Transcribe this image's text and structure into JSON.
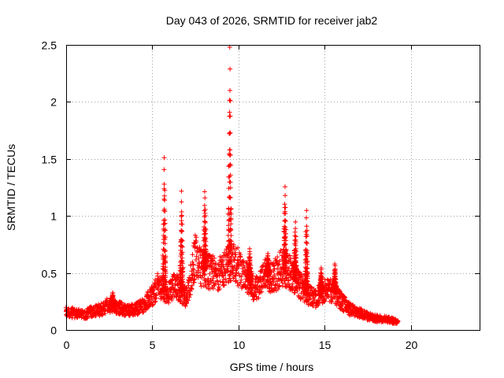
{
  "chart_data": {
    "type": "scatter",
    "title": "Day 043 of 2026, SRMTID for receiver jab2",
    "xlabel": "GPS time / hours",
    "ylabel": "SRMTID / TECUs",
    "xlim": [
      0,
      24
    ],
    "ylim": [
      0,
      2.5
    ],
    "grid": true,
    "marker": "+",
    "color": "#ff0000",
    "xticks": [
      0,
      5,
      10,
      15,
      20
    ],
    "xtick_labels": [
      "0",
      "5",
      "10",
      "15",
      "20"
    ],
    "yticks": [
      0,
      0.5,
      1,
      1.5,
      2,
      2.5
    ],
    "ytick_labels": [
      "0",
      "0.5",
      "1",
      "1.5",
      "2",
      "2.5"
    ],
    "series": [
      {
        "name": "jab2",
        "x_range": [
          0,
          19.25
        ],
        "sample_interval_hours": 0.025,
        "profile": [
          [
            0.0,
            0.15
          ],
          [
            0.5,
            0.15
          ],
          [
            1.0,
            0.13
          ],
          [
            1.5,
            0.16
          ],
          [
            2.0,
            0.18
          ],
          [
            2.5,
            0.22
          ],
          [
            3.0,
            0.2
          ],
          [
            3.5,
            0.17
          ],
          [
            4.0,
            0.18
          ],
          [
            4.5,
            0.22
          ],
          [
            5.0,
            0.3
          ],
          [
            5.3,
            0.38
          ],
          [
            6.0,
            0.33
          ],
          [
            6.3,
            0.4
          ],
          [
            7.0,
            0.28
          ],
          [
            7.5,
            0.65
          ],
          [
            7.8,
            0.55
          ],
          [
            8.5,
            0.5
          ],
          [
            9.0,
            0.5
          ],
          [
            9.5,
            0.6
          ],
          [
            10.0,
            0.55
          ],
          [
            10.5,
            0.45
          ],
          [
            11.0,
            0.35
          ],
          [
            11.5,
            0.5
          ],
          [
            12.0,
            0.45
          ],
          [
            12.5,
            0.55
          ],
          [
            13.0,
            0.5
          ],
          [
            13.5,
            0.4
          ],
          [
            14.0,
            0.32
          ],
          [
            14.5,
            0.28
          ],
          [
            15.0,
            0.35
          ],
          [
            15.5,
            0.35
          ],
          [
            16.0,
            0.25
          ],
          [
            16.5,
            0.18
          ],
          [
            17.0,
            0.15
          ],
          [
            17.5,
            0.12
          ],
          [
            18.0,
            0.1
          ],
          [
            18.5,
            0.1
          ],
          [
            19.0,
            0.08
          ],
          [
            19.25,
            0.08
          ]
        ],
        "peaks": [
          {
            "x": 2.7,
            "y": 0.33
          },
          {
            "x": 5.7,
            "y": 1.52
          },
          {
            "x": 6.7,
            "y": 1.22
          },
          {
            "x": 8.05,
            "y": 1.22
          },
          {
            "x": 9.5,
            "y": 2.48
          },
          {
            "x": 10.65,
            "y": 0.72
          },
          {
            "x": 11.7,
            "y": 0.68
          },
          {
            "x": 12.7,
            "y": 1.25
          },
          {
            "x": 13.3,
            "y": 0.95
          },
          {
            "x": 13.95,
            "y": 1.05
          },
          {
            "x": 14.8,
            "y": 0.55
          },
          {
            "x": 15.6,
            "y": 0.58
          }
        ]
      }
    ]
  }
}
